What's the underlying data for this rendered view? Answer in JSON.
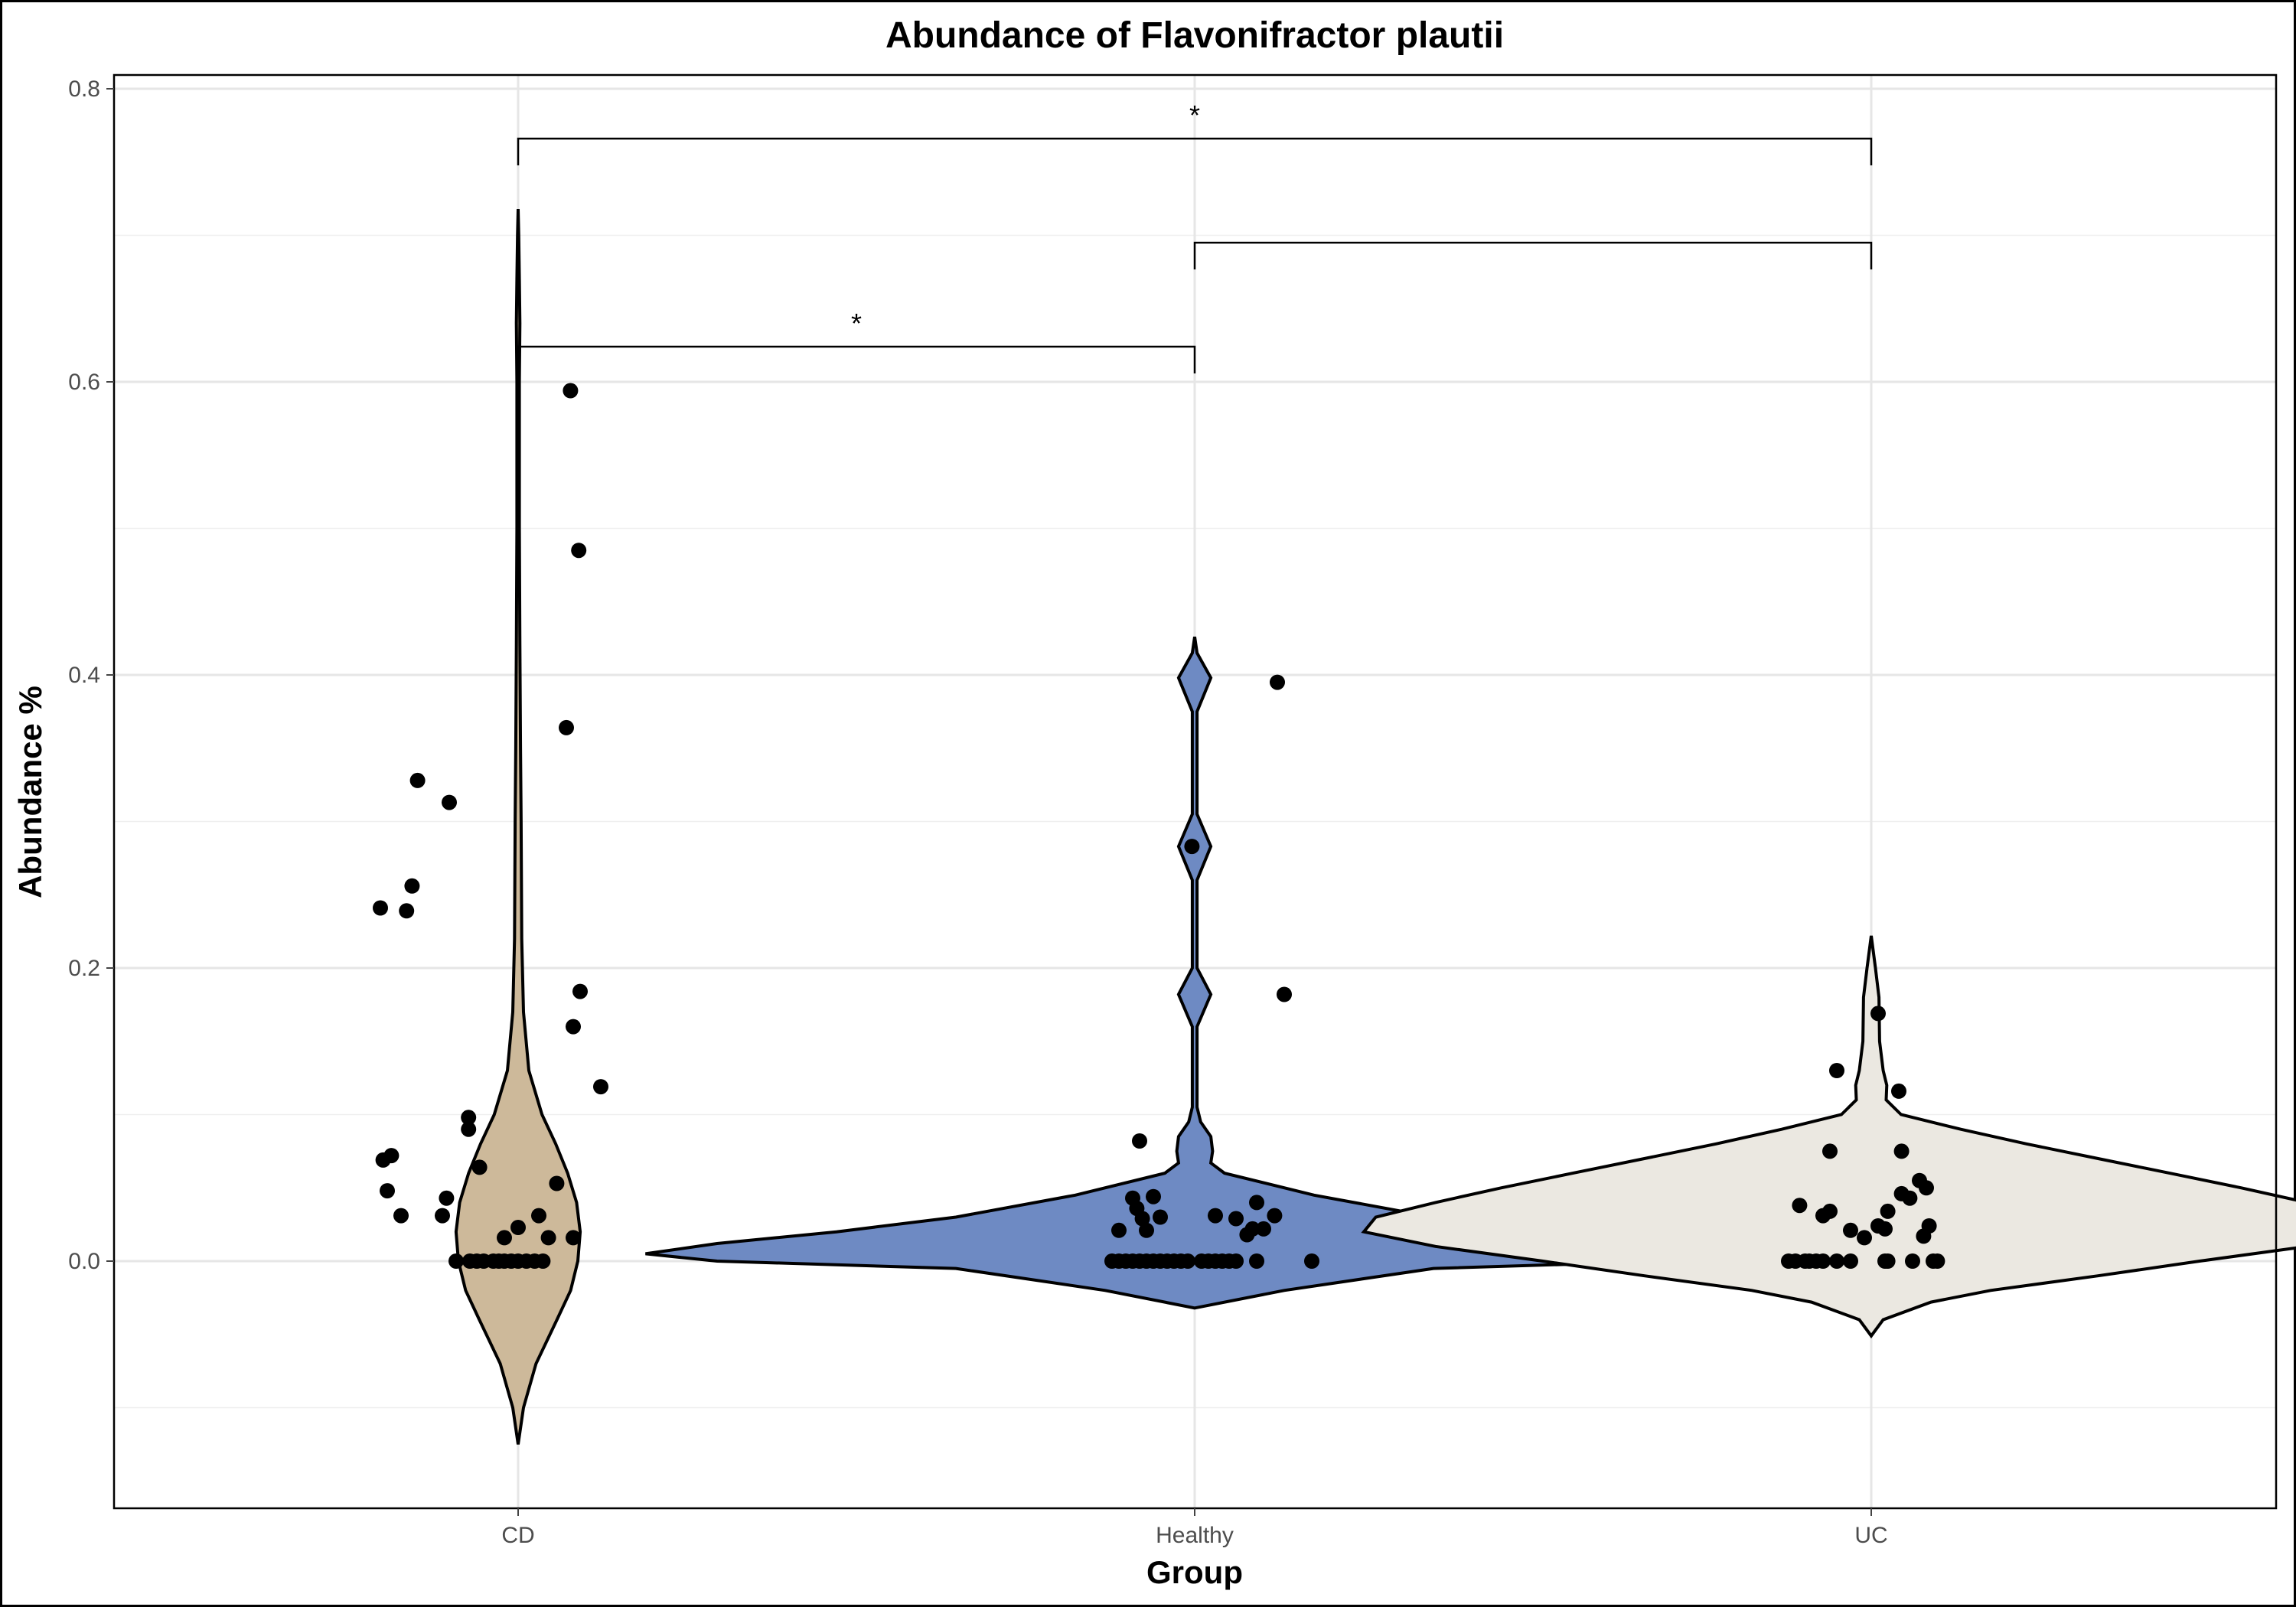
{
  "chart_data": {
    "type": "violin",
    "title": "Abundance of Flavonifractor plautii",
    "xlabel": "Group",
    "ylabel": "Abundance %",
    "ylim": [
      -0.168,
      0.81
    ],
    "y_ticks": [
      "0.0",
      "0.2",
      "0.4",
      "0.6",
      "0.8"
    ],
    "y_tick_values": [
      0.0,
      0.2,
      0.4,
      0.6,
      0.8
    ],
    "y_minor_ticks": [
      -0.1,
      0.1,
      0.3,
      0.5,
      0.7
    ],
    "categories": [
      "CD",
      "Healthy",
      "UC"
    ],
    "grid": true,
    "legend": "none",
    "groups": [
      {
        "label": "CD",
        "fill": "#cdb99a",
        "violin_outline": [
          [
            -0.125,
            0.0
          ],
          [
            -0.1,
            0.009
          ],
          [
            -0.07,
            0.03
          ],
          [
            -0.04,
            0.065
          ],
          [
            -0.02,
            0.088
          ],
          [
            0.0,
            0.1
          ],
          [
            0.02,
            0.104
          ],
          [
            0.04,
            0.098
          ],
          [
            0.06,
            0.083
          ],
          [
            0.08,
            0.063
          ],
          [
            0.1,
            0.04
          ],
          [
            0.13,
            0.018
          ],
          [
            0.17,
            0.009
          ],
          [
            0.22,
            0.006
          ],
          [
            0.3,
            0.005
          ],
          [
            0.35,
            0.004
          ],
          [
            0.42,
            0.003
          ],
          [
            0.5,
            0.002
          ],
          [
            0.6,
            0.002
          ],
          [
            0.64,
            0.003
          ],
          [
            0.67,
            0.002
          ],
          [
            0.7,
            0.001
          ],
          [
            0.718,
            0.0
          ]
        ],
        "points": [
          [
            -0.45,
            0.0
          ],
          [
            -0.35,
            0.0
          ],
          [
            -0.3,
            0.0
          ],
          [
            -0.25,
            0.0
          ],
          [
            -0.18,
            0.0
          ],
          [
            -0.14,
            0.0
          ],
          [
            -0.1,
            0.0
          ],
          [
            -0.05,
            0.0
          ],
          [
            0.0,
            0.0
          ],
          [
            0.06,
            0.0
          ],
          [
            0.12,
            0.0
          ],
          [
            0.18,
            0.0
          ],
          [
            -0.55,
            0.031
          ],
          [
            -0.85,
            0.031
          ],
          [
            -0.52,
            0.043
          ],
          [
            -0.1,
            0.016
          ],
          [
            0.22,
            0.016
          ],
          [
            0.4,
            0.016
          ],
          [
            0.15,
            0.031
          ],
          [
            -0.95,
            0.048
          ],
          [
            -0.28,
            0.064
          ],
          [
            0.28,
            0.053
          ],
          [
            -0.92,
            0.072
          ],
          [
            -0.98,
            0.069
          ],
          [
            -0.36,
            0.09
          ],
          [
            -0.36,
            0.098
          ],
          [
            0.4,
            0.16
          ],
          [
            0.6,
            0.119
          ],
          [
            0.45,
            0.184
          ],
          [
            -1.0,
            0.241
          ],
          [
            -0.81,
            0.239
          ],
          [
            -0.77,
            0.256
          ],
          [
            -0.73,
            0.328
          ],
          [
            -0.5,
            0.313
          ],
          [
            0.35,
            0.364
          ],
          [
            0.44,
            0.485
          ],
          [
            0.38,
            0.594
          ],
          [
            0.0,
            0.023
          ]
        ]
      },
      {
        "label": "Healthy",
        "fill": "#6e8ac3",
        "violin_outline": [
          [
            -0.032,
            0.0
          ],
          [
            -0.02,
            0.15
          ],
          [
            -0.005,
            0.4
          ],
          [
            0.0,
            0.8
          ],
          [
            0.005,
            0.92
          ],
          [
            0.012,
            0.8
          ],
          [
            0.02,
            0.6
          ],
          [
            0.03,
            0.4
          ],
          [
            0.045,
            0.2
          ],
          [
            0.06,
            0.05
          ],
          [
            0.067,
            0.027
          ],
          [
            0.075,
            0.03
          ],
          [
            0.085,
            0.027
          ],
          [
            0.095,
            0.01
          ],
          [
            0.105,
            0.004
          ],
          [
            0.16,
            0.004
          ],
          [
            0.182,
            0.027
          ],
          [
            0.2,
            0.004
          ],
          [
            0.26,
            0.004
          ],
          [
            0.283,
            0.027
          ],
          [
            0.305,
            0.004
          ],
          [
            0.375,
            0.004
          ],
          [
            0.398,
            0.027
          ],
          [
            0.415,
            0.004
          ],
          [
            0.426,
            0.0
          ]
        ],
        "points": [
          [
            -0.6,
            0.0
          ],
          [
            -0.55,
            0.0
          ],
          [
            -0.5,
            0.0
          ],
          [
            -0.45,
            0.0
          ],
          [
            -0.4,
            0.0
          ],
          [
            -0.35,
            0.0
          ],
          [
            -0.3,
            0.0
          ],
          [
            -0.25,
            0.0
          ],
          [
            -0.2,
            0.0
          ],
          [
            -0.15,
            0.0
          ],
          [
            -0.1,
            0.0
          ],
          [
            -0.05,
            0.0
          ],
          [
            0.05,
            0.0
          ],
          [
            0.1,
            0.0
          ],
          [
            0.15,
            0.0
          ],
          [
            0.2,
            0.0
          ],
          [
            0.25,
            0.0
          ],
          [
            0.3,
            0.0
          ],
          [
            0.45,
            0.0
          ],
          [
            0.85,
            0.0
          ],
          [
            -0.45,
            0.043
          ],
          [
            -0.42,
            0.036
          ],
          [
            -0.3,
            0.044
          ],
          [
            -0.35,
            0.021
          ],
          [
            -0.55,
            0.021
          ],
          [
            -0.38,
            0.029
          ],
          [
            -0.25,
            0.03
          ],
          [
            0.15,
            0.031
          ],
          [
            0.3,
            0.029
          ],
          [
            0.45,
            0.04
          ],
          [
            0.38,
            0.018
          ],
          [
            0.42,
            0.022
          ],
          [
            0.5,
            0.022
          ],
          [
            0.58,
            0.031
          ],
          [
            -0.4,
            0.082
          ],
          [
            -0.02,
            0.283
          ],
          [
            0.6,
            0.395
          ],
          [
            0.65,
            0.182
          ]
        ]
      },
      {
        "label": "UC",
        "fill": "#ebe8e1",
        "violin_outline": [
          [
            -0.051,
            0.0
          ],
          [
            -0.04,
            0.02
          ],
          [
            -0.028,
            0.1
          ],
          [
            -0.02,
            0.2
          ],
          [
            -0.01,
            0.38
          ],
          [
            0.0,
            0.55
          ],
          [
            0.01,
            0.73
          ],
          [
            0.02,
            0.85
          ],
          [
            0.03,
            0.83
          ],
          [
            0.04,
            0.73
          ],
          [
            0.05,
            0.62
          ],
          [
            0.06,
            0.5
          ],
          [
            0.07,
            0.38
          ],
          [
            0.08,
            0.26
          ],
          [
            0.09,
            0.15
          ],
          [
            0.1,
            0.05
          ],
          [
            0.11,
            0.025
          ],
          [
            0.12,
            0.026
          ],
          [
            0.13,
            0.02
          ],
          [
            0.15,
            0.014
          ],
          [
            0.18,
            0.013
          ],
          [
            0.2,
            0.007
          ],
          [
            0.222,
            0.0
          ]
        ],
        "points": [
          [
            -0.6,
            0.0
          ],
          [
            -0.55,
            0.0
          ],
          [
            -0.48,
            0.0
          ],
          [
            -0.45,
            0.0
          ],
          [
            -0.4,
            0.0
          ],
          [
            -0.35,
            0.0
          ],
          [
            -0.25,
            0.0
          ],
          [
            -0.15,
            0.0
          ],
          [
            0.1,
            0.0
          ],
          [
            0.12,
            0.0
          ],
          [
            0.3,
            0.0
          ],
          [
            0.45,
            0.0
          ],
          [
            0.48,
            0.0
          ],
          [
            -0.35,
            0.031
          ],
          [
            -0.52,
            0.038
          ],
          [
            -0.3,
            0.034
          ],
          [
            -0.05,
            0.016
          ],
          [
            -0.15,
            0.021
          ],
          [
            0.05,
            0.024
          ],
          [
            0.1,
            0.022
          ],
          [
            0.22,
            0.046
          ],
          [
            0.28,
            0.043
          ],
          [
            0.35,
            0.055
          ],
          [
            0.4,
            0.05
          ],
          [
            0.22,
            0.075
          ],
          [
            0.38,
            0.017
          ],
          [
            0.42,
            0.024
          ],
          [
            -0.3,
            0.075
          ],
          [
            -0.25,
            0.13
          ],
          [
            0.05,
            0.169
          ],
          [
            0.2,
            0.116
          ],
          [
            0.12,
            0.034
          ]
        ]
      }
    ],
    "comparisons": [
      {
        "from": "CD",
        "to": "Healthy",
        "y": 0.624,
        "label": "*"
      },
      {
        "from": "Healthy",
        "to": "UC",
        "y": 0.695,
        "label": ""
      },
      {
        "from": "CD",
        "to": "UC",
        "y": 0.766,
        "label": "*"
      }
    ]
  }
}
